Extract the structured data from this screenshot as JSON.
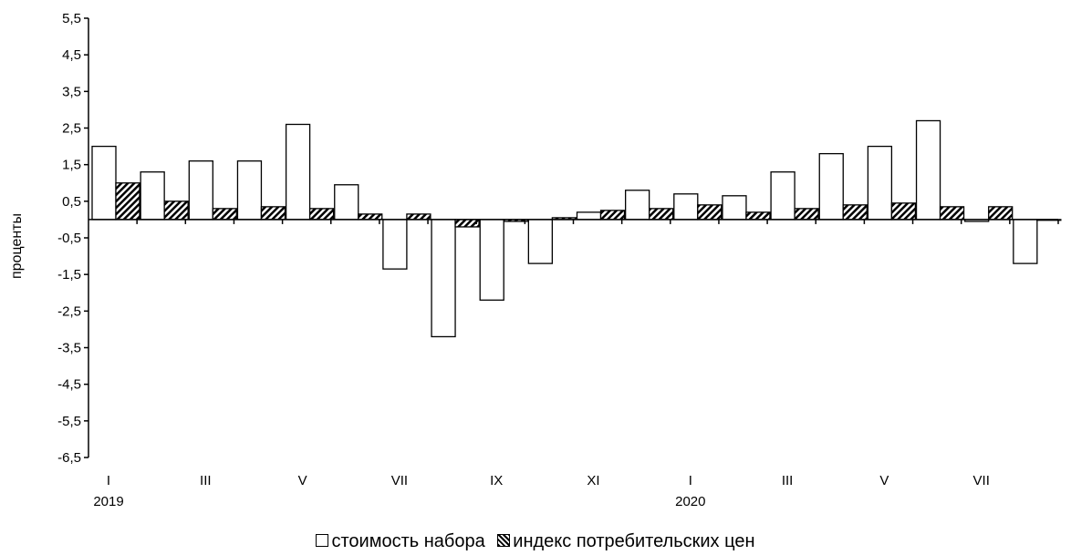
{
  "chart_data": {
    "type": "bar",
    "title": "",
    "ylabel": "проценты",
    "xlabel": "",
    "ylim": [
      -6.5,
      5.5
    ],
    "yticks": [
      "5,5",
      "4,5",
      "3,5",
      "2,5",
      "1,5",
      "0,5",
      "-0,5",
      "-1,5",
      "-2,5",
      "-3,5",
      "-4,5",
      "-5,5",
      "-6,5"
    ],
    "categories": [
      "I",
      "II",
      "III",
      "IV",
      "V",
      "VI",
      "VII",
      "VIII",
      "IX",
      "X",
      "XI",
      "XII",
      "I",
      "II",
      "III",
      "IV",
      "V",
      "VI",
      "VII",
      "VIII"
    ],
    "x_tick_labels": [
      "I",
      "",
      "III",
      "",
      "V",
      "",
      "VII",
      "",
      "IX",
      "",
      "XI",
      "",
      "I",
      "",
      "III",
      "",
      "V",
      "",
      "VII",
      ""
    ],
    "year_labels": [
      {
        "category_index": 0,
        "label": "2019"
      },
      {
        "category_index": 12,
        "label": "2020"
      }
    ],
    "series": [
      {
        "name": "стоимость набора",
        "fill": "white",
        "values": [
          2.0,
          1.3,
          1.6,
          1.6,
          2.6,
          0.95,
          -1.35,
          -3.2,
          -2.2,
          -1.2,
          0.2,
          0.8,
          0.7,
          0.65,
          1.3,
          1.8,
          2.0,
          2.7,
          -0.05,
          -1.2
        ]
      },
      {
        "name": "индекс потребительских цен",
        "fill": "hatched",
        "values": [
          1.0,
          0.5,
          0.3,
          0.35,
          0.3,
          0.15,
          0.15,
          -0.2,
          -0.05,
          0.05,
          0.25,
          0.3,
          0.4,
          0.2,
          0.3,
          0.4,
          0.45,
          0.35,
          0.35,
          0.0
        ]
      }
    ],
    "grid": false,
    "legend_position": "bottom"
  },
  "legend": {
    "items": [
      {
        "label": "стоимость набора"
      },
      {
        "label": "индекс потребительских цен"
      }
    ]
  }
}
